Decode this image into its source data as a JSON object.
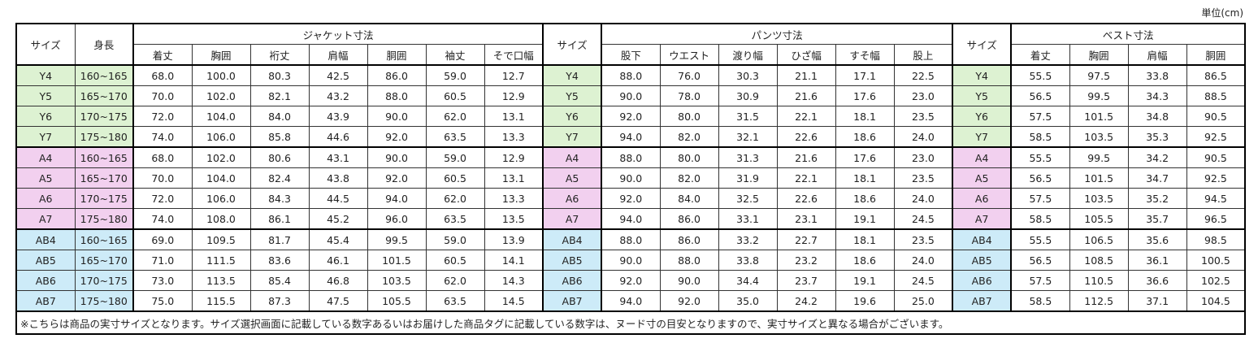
{
  "unit_label": "単位(cm)",
  "headers": {
    "size": "サイズ",
    "height": "身長",
    "jacket": "ジャケット寸法",
    "pants": "パンツ寸法",
    "vest": "ベスト寸法",
    "jacket_cols": [
      "着丈",
      "胸囲",
      "裄丈",
      "肩幅",
      "胴囲",
      "袖丈",
      "そで口幅"
    ],
    "pants_cols": [
      "股下",
      "ウエスト",
      "渡り幅",
      "ひざ幅",
      "すそ幅",
      "股上"
    ],
    "vest_cols": [
      "着丈",
      "胸囲",
      "肩幅",
      "胴囲"
    ]
  },
  "group_colors": {
    "Y": "#ddf2d2",
    "A": "#f2d0ef",
    "AB": "#cdebf8"
  },
  "rows": [
    {
      "group": "Y",
      "size": "Y4",
      "height": "160~165",
      "jacket": [
        "68.0",
        "100.0",
        "80.3",
        "42.5",
        "86.0",
        "59.0",
        "12.7"
      ],
      "pants": [
        "88.0",
        "76.0",
        "30.3",
        "21.1",
        "17.1",
        "22.5"
      ],
      "vest": [
        "55.5",
        "97.5",
        "33.8",
        "86.5"
      ]
    },
    {
      "group": "Y",
      "size": "Y5",
      "height": "165~170",
      "jacket": [
        "70.0",
        "102.0",
        "82.1",
        "43.2",
        "88.0",
        "60.5",
        "12.9"
      ],
      "pants": [
        "90.0",
        "78.0",
        "30.9",
        "21.6",
        "17.6",
        "23.0"
      ],
      "vest": [
        "56.5",
        "99.5",
        "34.3",
        "88.5"
      ]
    },
    {
      "group": "Y",
      "size": "Y6",
      "height": "170~175",
      "jacket": [
        "72.0",
        "104.0",
        "84.0",
        "43.9",
        "90.0",
        "62.0",
        "13.1"
      ],
      "pants": [
        "92.0",
        "80.0",
        "31.5",
        "22.1",
        "18.1",
        "23.5"
      ],
      "vest": [
        "57.5",
        "101.5",
        "34.8",
        "90.5"
      ]
    },
    {
      "group": "Y",
      "size": "Y7",
      "height": "175~180",
      "jacket": [
        "74.0",
        "106.0",
        "85.8",
        "44.6",
        "92.0",
        "63.5",
        "13.3"
      ],
      "pants": [
        "94.0",
        "82.0",
        "32.1",
        "22.6",
        "18.6",
        "24.0"
      ],
      "vest": [
        "58.5",
        "103.5",
        "35.3",
        "92.5"
      ]
    },
    {
      "group": "A",
      "size": "A4",
      "height": "160~165",
      "jacket": [
        "68.0",
        "102.0",
        "80.6",
        "43.1",
        "90.0",
        "59.0",
        "12.9"
      ],
      "pants": [
        "88.0",
        "80.0",
        "31.3",
        "21.6",
        "17.6",
        "23.0"
      ],
      "vest": [
        "55.5",
        "99.5",
        "34.2",
        "90.5"
      ]
    },
    {
      "group": "A",
      "size": "A5",
      "height": "165~170",
      "jacket": [
        "70.0",
        "104.0",
        "82.4",
        "43.8",
        "92.0",
        "60.5",
        "13.1"
      ],
      "pants": [
        "90.0",
        "82.0",
        "31.9",
        "22.1",
        "18.1",
        "23.5"
      ],
      "vest": [
        "56.5",
        "101.5",
        "34.7",
        "92.5"
      ]
    },
    {
      "group": "A",
      "size": "A6",
      "height": "170~175",
      "jacket": [
        "72.0",
        "106.0",
        "84.3",
        "44.5",
        "94.0",
        "62.0",
        "13.3"
      ],
      "pants": [
        "92.0",
        "84.0",
        "32.5",
        "22.6",
        "18.6",
        "24.0"
      ],
      "vest": [
        "57.5",
        "103.5",
        "35.2",
        "94.5"
      ]
    },
    {
      "group": "A",
      "size": "A7",
      "height": "175~180",
      "jacket": [
        "74.0",
        "108.0",
        "86.1",
        "45.2",
        "96.0",
        "63.5",
        "13.5"
      ],
      "pants": [
        "94.0",
        "86.0",
        "33.1",
        "23.1",
        "19.1",
        "24.5"
      ],
      "vest": [
        "58.5",
        "105.5",
        "35.7",
        "96.5"
      ]
    },
    {
      "group": "AB",
      "size": "AB4",
      "height": "160~165",
      "jacket": [
        "69.0",
        "109.5",
        "81.7",
        "45.4",
        "99.5",
        "59.0",
        "13.9"
      ],
      "pants": [
        "88.0",
        "86.0",
        "33.2",
        "22.7",
        "18.1",
        "23.5"
      ],
      "vest": [
        "55.5",
        "106.5",
        "35.6",
        "98.5"
      ]
    },
    {
      "group": "AB",
      "size": "AB5",
      "height": "165~170",
      "jacket": [
        "71.0",
        "111.5",
        "83.6",
        "46.1",
        "101.5",
        "60.5",
        "14.1"
      ],
      "pants": [
        "90.0",
        "88.0",
        "33.8",
        "23.2",
        "18.6",
        "24.0"
      ],
      "vest": [
        "56.5",
        "108.5",
        "36.1",
        "100.5"
      ]
    },
    {
      "group": "AB",
      "size": "AB6",
      "height": "170~175",
      "jacket": [
        "73.0",
        "113.5",
        "85.4",
        "46.8",
        "103.5",
        "62.0",
        "14.3"
      ],
      "pants": [
        "92.0",
        "90.0",
        "34.4",
        "23.7",
        "19.1",
        "24.5"
      ],
      "vest": [
        "57.5",
        "110.5",
        "36.6",
        "102.5"
      ]
    },
    {
      "group": "AB",
      "size": "AB7",
      "height": "175~180",
      "jacket": [
        "75.0",
        "115.5",
        "87.3",
        "47.5",
        "105.5",
        "63.5",
        "14.5"
      ],
      "pants": [
        "94.0",
        "92.0",
        "35.0",
        "24.2",
        "19.6",
        "25.0"
      ],
      "vest": [
        "58.5",
        "112.5",
        "37.1",
        "104.5"
      ]
    }
  ],
  "footnote": "※こちらは商品の実寸サイズとなります。サイズ選択画面に記載している数字あるいはお届けした商品タグに記載している数字は、ヌード寸の目安となりますので、実寸サイズと異なる場合がございます。"
}
